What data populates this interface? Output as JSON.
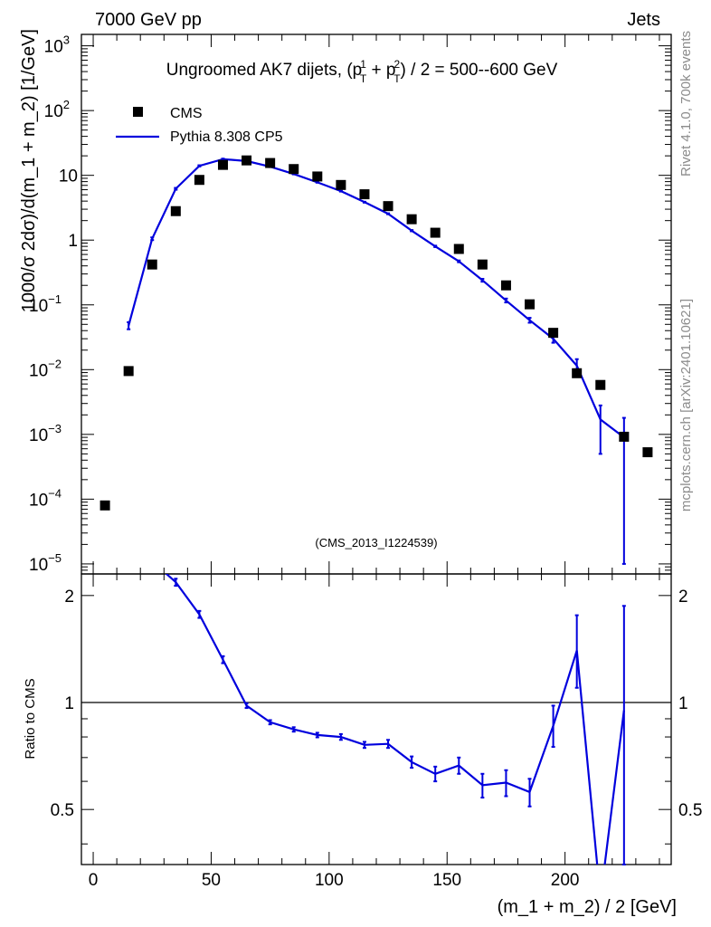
{
  "header": {
    "left": "7000 GeV pp",
    "right": "Jets"
  },
  "side_text": {
    "rivet": "Rivet 4.1.0,  700k events",
    "mcplots": "mcplots.cern.ch [arXiv:2401.10621]"
  },
  "chart_data": {
    "type": "scatter",
    "title_parts": {
      "pre": "Ungroomed AK7 dijets, (p",
      "sup1": "1",
      "sub1": "T",
      "mid": " + p",
      "sup2": "2",
      "sub2": "T",
      "post": ") / 2 = 500--600 GeV"
    },
    "analysis_label": "(CMS_2013_I1224539)",
    "xlabel": "(m_1 + m_2) / 2 [GeV]",
    "ylabel": "1000/σ  2dσ)/d(m_1 + m_2) [1/GeV]",
    "ratio_ylabel": "Ratio to CMS",
    "xlim": [
      -5,
      245
    ],
    "ylim": [
      7e-06,
      1500
    ],
    "yscale": "log",
    "ratio_ylim": [
      0.35,
      2.3
    ],
    "ratio_yscale": "log",
    "x_ticks": [
      0,
      50,
      100,
      150,
      200
    ],
    "x_tick_labels": [
      "0",
      "50",
      "100",
      "150",
      "200"
    ],
    "y_tick_labels": [
      {
        "v": 1e-05,
        "base": "10",
        "exp": "−5"
      },
      {
        "v": 0.0001,
        "base": "10",
        "exp": "−4"
      },
      {
        "v": 0.001,
        "base": "10",
        "exp": "−3"
      },
      {
        "v": 0.01,
        "base": "10",
        "exp": "−2"
      },
      {
        "v": 0.1,
        "base": "10",
        "exp": "−1"
      },
      {
        "v": 1,
        "base": "1",
        "exp": ""
      },
      {
        "v": 10,
        "base": "10",
        "exp": ""
      },
      {
        "v": 100,
        "base": "10",
        "exp": "2"
      },
      {
        "v": 1000,
        "base": "10",
        "exp": "3"
      }
    ],
    "ratio_tick_labels": [
      {
        "v": 0.5,
        "label": "0.5"
      },
      {
        "v": 1,
        "label": "1"
      },
      {
        "v": 2,
        "label": "2"
      }
    ],
    "legend": {
      "position": "top-left",
      "entries": [
        "CMS",
        "Pythia 8.308 CP5"
      ]
    },
    "colors": {
      "data": "#000000",
      "mc": "#0000dd",
      "side_text": "#8c8c8c"
    },
    "series": [
      {
        "name": "CMS",
        "style": "markers",
        "x": [
          5,
          15,
          25,
          35,
          45,
          55,
          65,
          75,
          85,
          95,
          105,
          115,
          125,
          135,
          145,
          155,
          165,
          175,
          185,
          195,
          205,
          215,
          225,
          235
        ],
        "y": [
          8e-05,
          0.0095,
          0.42,
          2.8,
          8.5,
          14.5,
          17.0,
          15.5,
          12.5,
          9.6,
          7.1,
          5.1,
          3.35,
          2.1,
          1.3,
          0.73,
          0.42,
          0.2,
          0.102,
          0.037,
          0.0088,
          0.0058,
          0.00092,
          0.00053
        ]
      },
      {
        "name": "Pythia 8.308 CP5",
        "style": "line",
        "x": [
          15,
          25,
          35,
          45,
          55,
          65,
          75,
          85,
          95,
          105,
          115,
          125,
          135,
          145,
          155,
          165,
          175,
          185,
          195,
          205,
          215,
          225
        ],
        "y": [
          0.048,
          1.05,
          6.2,
          14.0,
          17.8,
          16.6,
          13.6,
          10.5,
          7.8,
          5.7,
          3.85,
          2.55,
          1.4,
          0.8,
          0.47,
          0.24,
          0.117,
          0.058,
          0.03,
          0.0115,
          0.0017,
          0.0009
        ],
        "y_err_low": [
          0.006,
          0.05,
          0.2,
          0.3,
          0.3,
          0.3,
          0.2,
          0.15,
          0.1,
          0.08,
          0.06,
          0.04,
          0.03,
          0.02,
          0.015,
          0.012,
          0.008,
          0.005,
          0.004,
          0.003,
          0.0012,
          0.00089
        ],
        "y_err_high": [
          0.006,
          0.05,
          0.2,
          0.3,
          0.3,
          0.3,
          0.2,
          0.15,
          0.1,
          0.08,
          0.06,
          0.04,
          0.03,
          0.02,
          0.015,
          0.012,
          0.008,
          0.005,
          0.004,
          0.003,
          0.0011,
          0.0009
        ]
      },
      {
        "name": "Ratio",
        "style": "line",
        "panel": "ratio",
        "x": [
          25,
          35,
          45,
          55,
          65,
          75,
          85,
          95,
          105,
          115,
          125,
          135,
          145,
          155,
          165,
          175,
          185,
          195,
          205,
          215,
          225
        ],
        "y": [
          2.5,
          2.18,
          1.77,
          1.32,
          0.98,
          0.88,
          0.84,
          0.81,
          0.8,
          0.76,
          0.765,
          0.68,
          0.63,
          0.665,
          0.585,
          0.595,
          0.56,
          0.86,
          1.4,
          0.28,
          0.95
        ],
        "y_err_low": [
          0.06,
          0.05,
          0.04,
          0.03,
          0.015,
          0.012,
          0.012,
          0.012,
          0.015,
          0.015,
          0.02,
          0.025,
          0.03,
          0.035,
          0.045,
          0.05,
          0.05,
          0.11,
          0.3,
          0.1,
          0.6
        ],
        "y_err_high": [
          0.06,
          0.05,
          0.04,
          0.03,
          0.015,
          0.012,
          0.012,
          0.012,
          0.015,
          0.015,
          0.02,
          0.025,
          0.03,
          0.035,
          0.045,
          0.05,
          0.05,
          0.12,
          0.36,
          0.1,
          0.92
        ]
      }
    ],
    "reference_line": 1
  }
}
